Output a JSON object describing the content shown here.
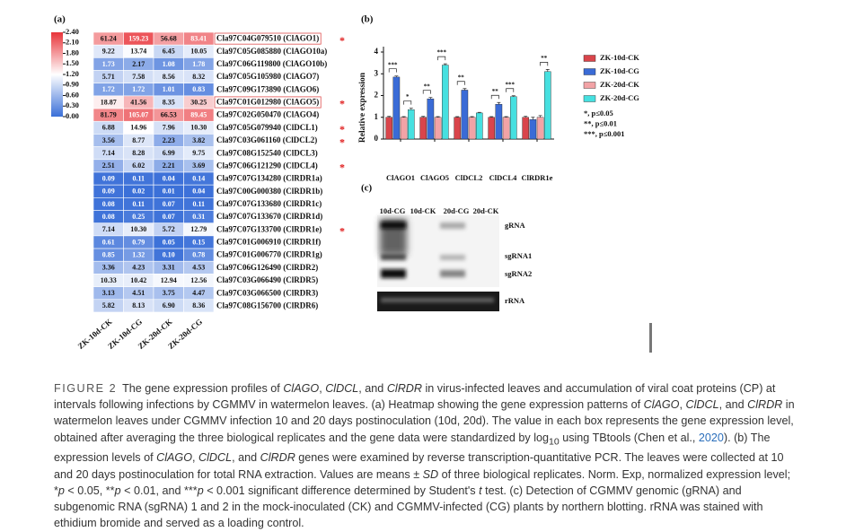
{
  "chart_data": [
    {
      "type": "heatmap",
      "panel_label": "(a)",
      "columns": [
        "ZK-10d-CK",
        "ZK-10d-CG",
        "ZK-20d-CK",
        "ZK-20d-CG"
      ],
      "colormap": [
        "#3a6fd8",
        "#ffffff",
        "#e8343a"
      ],
      "zlim": [
        0,
        2.4
      ],
      "scale_ticks": [
        {
          "value": 2.4,
          "label": "2.40"
        },
        {
          "value": 2.1,
          "label": "2.10"
        },
        {
          "value": 1.8,
          "label": "1.80"
        },
        {
          "value": 1.5,
          "label": "1.50"
        },
        {
          "value": 1.2,
          "label": "1.20"
        },
        {
          "value": 0.9,
          "label": "0.90"
        },
        {
          "value": 0.6,
          "label": "0.60"
        },
        {
          "value": 0.3,
          "label": "0.30"
        },
        {
          "value": 0,
          "label": "0.00"
        }
      ],
      "rows": [
        {
          "gene": "Cla97C04G079510 (ClAGO1)",
          "values": [
            61.24,
            159.23,
            56.68,
            83.41
          ],
          "value_labels": [
            "61.24",
            "159.23",
            "56.68",
            "83.41"
          ],
          "mark": "*",
          "boxed": true
        },
        {
          "gene": "Cla97C05G085880 (ClAGO10a)",
          "values": [
            9.22,
            13.74,
            6.45,
            10.05
          ],
          "value_labels": [
            "9.22",
            "13.74",
            "6.45",
            "10.05"
          ]
        },
        {
          "gene": "Cla97C06G119800 (ClAGO10b)",
          "values": [
            1.73,
            2.17,
            1.08,
            1.78
          ],
          "value_labels": [
            "1.73",
            "2.17",
            "1.08",
            "1.78"
          ]
        },
        {
          "gene": "Cla97C05G105980 (ClAGO7)",
          "values": [
            5.71,
            7.58,
            8.56,
            8.32
          ],
          "value_labels": [
            "5.71",
            "7.58",
            "8.56",
            "8.32"
          ]
        },
        {
          "gene": "Cla97C09G173890 (ClAGO6)",
          "values": [
            1.72,
            1.72,
            1.01,
            0.83
          ],
          "value_labels": [
            "1.72",
            "1.72",
            "1.01",
            "0.83"
          ]
        },
        {
          "gene": "Cla97C01G012980 (ClAGO5)",
          "values": [
            18.87,
            41.56,
            8.35,
            30.25
          ],
          "value_labels": [
            "18.87",
            "41.56",
            "8.35",
            "30.25"
          ],
          "mark": "*",
          "boxed": true
        },
        {
          "gene": "Cla97C02G050470 (ClAGO4)",
          "values": [
            81.79,
            105.07,
            66.53,
            89.45
          ],
          "value_labels": [
            "81.79",
            "105.07",
            "66.53",
            "89.45"
          ]
        },
        {
          "gene": "Cla97C05G079940 (ClDCL1)",
          "values": [
            6.88,
            14.96,
            7.96,
            10.3
          ],
          "value_labels": [
            "6.88",
            "14.96",
            "7.96",
            "10.30"
          ],
          "mark": "*"
        },
        {
          "gene": "Cla97C03G061160 (ClDCL2)",
          "values": [
            3.56,
            8.77,
            2.23,
            3.82
          ],
          "value_labels": [
            "3.56",
            "8.77",
            "2.23",
            "3.82"
          ],
          "mark": "*"
        },
        {
          "gene": "Cla97C08G152540 (ClDCL3)",
          "values": [
            7.14,
            8.28,
            6.99,
            9.75
          ],
          "value_labels": [
            "7.14",
            "8.28",
            "6.99",
            "9.75"
          ]
        },
        {
          "gene": "Cla97C06G121290 (ClDCL4)",
          "values": [
            2.51,
            6.02,
            2.21,
            3.69
          ],
          "value_labels": [
            "2.51",
            "6.02",
            "2.21",
            "3.69"
          ],
          "mark": "*"
        },
        {
          "gene": "Cla97C07G134280 (ClRDR1a)",
          "values": [
            0.09,
            0.11,
            0.04,
            0.14
          ],
          "value_labels": [
            "0.09",
            "0.11",
            "0.04",
            "0.14"
          ]
        },
        {
          "gene": "Cla97C00G000380 (ClRDR1b)",
          "values": [
            0.09,
            0.02,
            0.01,
            0.04
          ],
          "value_labels": [
            "0.09",
            "0.02",
            "0.01",
            "0.04"
          ]
        },
        {
          "gene": "Cla97C07G133680 (ClRDR1c)",
          "values": [
            0.08,
            0.11,
            0.07,
            0.11
          ],
          "value_labels": [
            "0.08",
            "0.11",
            "0.07",
            "0.11"
          ]
        },
        {
          "gene": "Cla97C07G133670 (ClRDR1d)",
          "values": [
            0.08,
            0.25,
            0.07,
            0.31
          ],
          "value_labels": [
            "0.08",
            "0.25",
            "0.07",
            "0.31"
          ]
        },
        {
          "gene": "Cla97C07G133700 (ClRDR1e)",
          "values": [
            7.14,
            10.3,
            5.72,
            12.79
          ],
          "value_labels": [
            "7.14",
            "10.30",
            "5.72",
            "12.79"
          ],
          "mark": "*"
        },
        {
          "gene": "Cla97C01G006910 (ClRDR1f)",
          "values": [
            0.61,
            0.79,
            0.05,
            0.15
          ],
          "value_labels": [
            "0.61",
            "0.79",
            "0.05",
            "0.15"
          ]
        },
        {
          "gene": "Cla97C01G006770 (ClRDR1g)",
          "values": [
            0.85,
            1.32,
            0.1,
            0.78
          ],
          "value_labels": [
            "0.85",
            "1.32",
            "0.10",
            "0.78"
          ]
        },
        {
          "gene": "Cla97C06G126490 (ClRDR2)",
          "values": [
            3.36,
            4.23,
            3.31,
            4.53
          ],
          "value_labels": [
            "3.36",
            "4.23",
            "3.31",
            "4.53"
          ]
        },
        {
          "gene": "Cla97C03G066490 (ClRDR5)",
          "values": [
            10.33,
            10.42,
            12.94,
            12.56
          ],
          "value_labels": [
            "10.33",
            "10.42",
            "12.94",
            "12.56"
          ]
        },
        {
          "gene": "Cla97C03G066500 (ClRDR3)",
          "values": [
            3.13,
            4.51,
            3.75,
            4.47
          ],
          "value_labels": [
            "3.13",
            "4.51",
            "3.75",
            "4.47"
          ]
        },
        {
          "gene": "Cla97C08G156700 (ClRDR6)",
          "values": [
            5.82,
            8.13,
            6.9,
            8.36
          ],
          "value_labels": [
            "5.82",
            "8.13",
            "6.90",
            "8.36"
          ]
        }
      ]
    },
    {
      "type": "bar",
      "panel_label": "(b)",
      "y_label": "Relative expression",
      "categories": [
        "ClAGO1",
        "ClAGO5",
        "ClDCL2",
        "ClDCL4",
        "ClRDR1e"
      ],
      "series": [
        {
          "name": "ZK-10d-CK",
          "color": "#d9454b",
          "values": [
            1,
            1,
            1,
            1,
            1
          ],
          "errors": [
            0.04,
            0.04,
            0.03,
            0.03,
            0.05
          ]
        },
        {
          "name": "ZK-10d-CG",
          "color": "#3a6bd6",
          "values": [
            2.85,
            1.85,
            2.25,
            1.6,
            0.9
          ],
          "errors": [
            0.05,
            0.06,
            0.07,
            0.08,
            0.1
          ]
        },
        {
          "name": "ZK-20d-CK",
          "color": "#f2a3a6",
          "values": [
            1,
            1,
            1,
            1,
            1
          ],
          "errors": [
            0.03,
            0.03,
            0.03,
            0.03,
            0.08
          ]
        },
        {
          "name": "ZK-20d-CG",
          "color": "#46e0e0",
          "values": [
            1.35,
            3.4,
            1.2,
            1.95,
            3.1
          ],
          "errors": [
            0.07,
            0.06,
            0.03,
            0.04,
            0.1
          ]
        }
      ],
      "significance": [
        {
          "category": "ClAGO1",
          "series": [
            "ZK-10d-CK",
            "ZK-10d-CG"
          ],
          "label": "***"
        },
        {
          "category": "ClAGO1",
          "series": [
            "ZK-20d-CK",
            "ZK-20d-CG"
          ],
          "label": "*"
        },
        {
          "category": "ClAGO5",
          "series": [
            "ZK-10d-CK",
            "ZK-10d-CG"
          ],
          "label": "**"
        },
        {
          "category": "ClAGO5",
          "series": [
            "ZK-20d-CK",
            "ZK-20d-CG"
          ],
          "label": "***"
        },
        {
          "category": "ClDCL2",
          "series": [
            "ZK-10d-CK",
            "ZK-10d-CG"
          ],
          "label": "**"
        },
        {
          "category": "ClDCL4",
          "series": [
            "ZK-10d-CK",
            "ZK-10d-CG"
          ],
          "label": "**"
        },
        {
          "category": "ClDCL4",
          "series": [
            "ZK-20d-CK",
            "ZK-20d-CG"
          ],
          "label": "***"
        },
        {
          "category": "ClRDR1e",
          "series": [
            "ZK-20d-CK",
            "ZK-20d-CG"
          ],
          "label": "**"
        }
      ],
      "significance_legend": [
        "*,  p≤0.05",
        "**, p≤0.01",
        "***, p≤0.001"
      ],
      "ylim": [
        0,
        4
      ],
      "yticks": [
        0,
        1,
        2,
        3,
        4
      ]
    }
  ],
  "gel": {
    "panel_label": "(c)",
    "lanes": [
      "10d-CG",
      "10d-CK",
      "20d-CG",
      "20d-CK"
    ],
    "bands": [
      "gRNA",
      "sgRNA1",
      "sgRNA2",
      "rRNA"
    ]
  },
  "caption": {
    "label": "FIGURE 2",
    "parts": [
      {
        "text": "The gene expression profiles of "
      },
      {
        "text": "ClAGO",
        "style": "italic"
      },
      {
        "text": ", "
      },
      {
        "text": "ClDCL",
        "style": "italic"
      },
      {
        "text": ", and "
      },
      {
        "text": "ClRDR",
        "style": "italic"
      },
      {
        "text": " in virus-infected leaves and accumulation of viral coat proteins (CP) at intervals following infections by CGMMV in watermelon leaves. (a) Heatmap showing the gene expression patterns of "
      },
      {
        "text": "ClAGO",
        "style": "italic"
      },
      {
        "text": ", "
      },
      {
        "text": "ClDCL",
        "style": "italic"
      },
      {
        "text": ", and "
      },
      {
        "text": "ClRDR",
        "style": "italic"
      },
      {
        "text": " in watermelon leaves under CGMMV infection 10 and 20 days postinoculation (10d, 20d). The value in each box represents the gene expression level, obtained after averaging the three biological replicates and the gene data were standardized by log"
      },
      {
        "text": "10",
        "style": "sub"
      },
      {
        "text": " using TBtools (Chen et al., "
      },
      {
        "text": "2020",
        "style": "link"
      },
      {
        "text": "). (b) The expression levels of "
      },
      {
        "text": "ClAGO",
        "style": "italic"
      },
      {
        "text": ", "
      },
      {
        "text": "ClDCL",
        "style": "italic"
      },
      {
        "text": ", and "
      },
      {
        "text": "ClRDR",
        "style": "italic"
      },
      {
        "text": " genes were examined by reverse transcription-quantitative PCR. The leaves were collected at 10 and 20 days postinoculation for total RNA extraction. Values are means ± "
      },
      {
        "text": "SD",
        "style": "italic"
      },
      {
        "text": " of three biological replicates. Norm. Exp, normalized expression level; *"
      },
      {
        "text": "p",
        "style": "italic"
      },
      {
        "text": " < 0.05, **"
      },
      {
        "text": "p",
        "style": "italic"
      },
      {
        "text": " < 0.01, and ***"
      },
      {
        "text": "p",
        "style": "italic"
      },
      {
        "text": " < 0.001 significant difference determined by Student's "
      },
      {
        "text": "t",
        "style": "italic"
      },
      {
        "text": " test. (c) Detection of CGMMV genomic (gRNA) and subgenomic RNA (sgRNA) 1 and 2 in the mock-inoculated (CK) and CGMMV-infected (CG) plants by northern blotting. rRNA was stained with ethidium bromide and served as a loading control."
      }
    ]
  }
}
